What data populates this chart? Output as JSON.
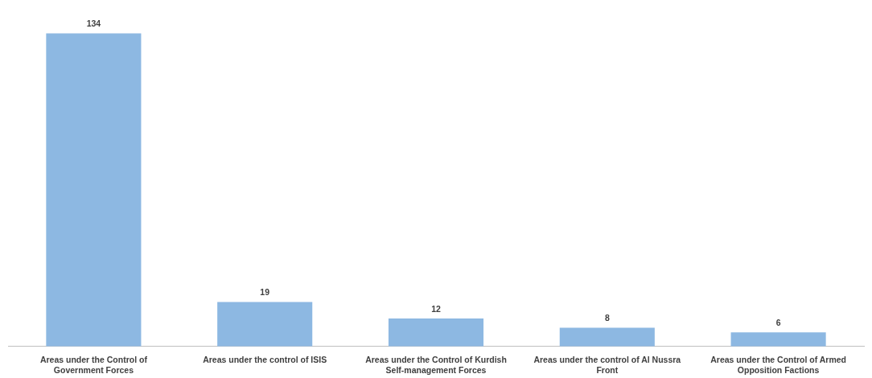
{
  "chart_data": {
    "type": "bar",
    "categories": [
      "Areas under the Control of Government Forces",
      "Areas under the control of ISIS",
      "Areas under the Control of Kurdish Self-management Forces",
      "Areas under the control of Al Nussra Front",
      "Areas under the Control of Armed Opposition Factions"
    ],
    "values": [
      134,
      19,
      12,
      8,
      6
    ],
    "color": "#8db8e2",
    "data_labels": true
  }
}
